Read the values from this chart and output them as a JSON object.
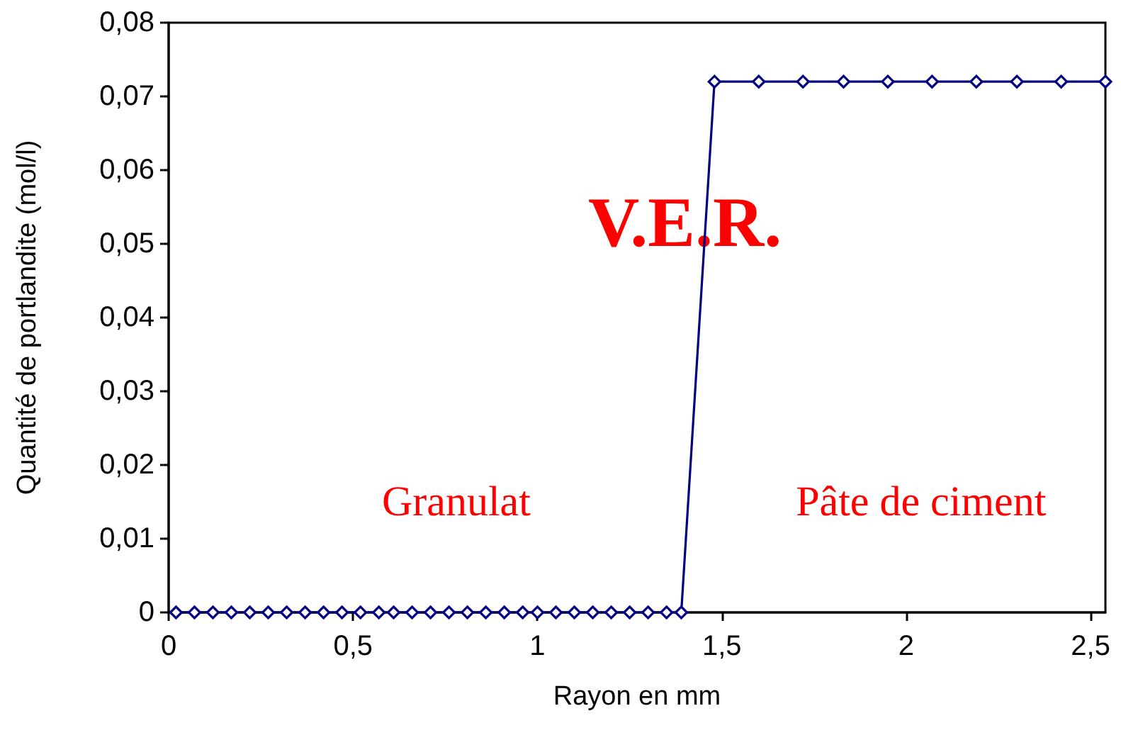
{
  "chart_data": {
    "type": "line",
    "xlabel": "Rayon en mm",
    "ylabel": "Quantité de portlandite (mol/l)",
    "x": [
      0.02,
      0.07,
      0.12,
      0.17,
      0.22,
      0.27,
      0.32,
      0.37,
      0.42,
      0.47,
      0.52,
      0.57,
      0.61,
      0.66,
      0.71,
      0.76,
      0.81,
      0.86,
      0.91,
      0.96,
      1.0,
      1.05,
      1.1,
      1.15,
      1.2,
      1.25,
      1.3,
      1.35,
      1.39,
      1.48,
      1.6,
      1.72,
      1.83,
      1.95,
      2.07,
      2.19,
      2.3,
      2.42,
      2.54
    ],
    "series": [
      {
        "color": "#000080",
        "values": [
          0,
          0,
          0,
          0,
          0,
          0,
          0,
          0,
          0,
          0,
          0,
          0,
          0,
          0,
          0,
          0,
          0,
          0,
          0,
          0,
          0,
          0,
          0,
          0,
          0,
          0,
          0,
          0,
          0,
          0.072,
          0.072,
          0.072,
          0.072,
          0.072,
          0.072,
          0.072,
          0.072,
          0.072,
          0.072
        ]
      }
    ],
    "xlim": [
      0,
      2.54
    ],
    "xticks": [
      0,
      {
        "value": 0.5,
        "label": "0,5"
      },
      1,
      {
        "value": 1.5,
        "label": "1,5"
      },
      2,
      {
        "value": 2.5,
        "label": "2,5"
      }
    ],
    "ylim": [
      0,
      0.08
    ],
    "yticks": [
      0,
      {
        "value": 0.01,
        "label": "0,01"
      },
      {
        "value": 0.02,
        "label": "0,02"
      },
      {
        "value": 0.03,
        "label": "0,03"
      },
      {
        "value": 0.04,
        "label": "0,04"
      },
      {
        "value": 0.05,
        "label": "0,05"
      },
      {
        "value": 0.06,
        "label": "0,06"
      },
      {
        "value": 0.07,
        "label": "0,07"
      },
      {
        "value": 0.08,
        "label": "0,08"
      }
    ],
    "annotations": [
      "V.E.R.",
      "Granulat",
      "Pâte de ciment"
    ],
    "marker": "diamond",
    "line_style": "solid",
    "grid": false
  }
}
